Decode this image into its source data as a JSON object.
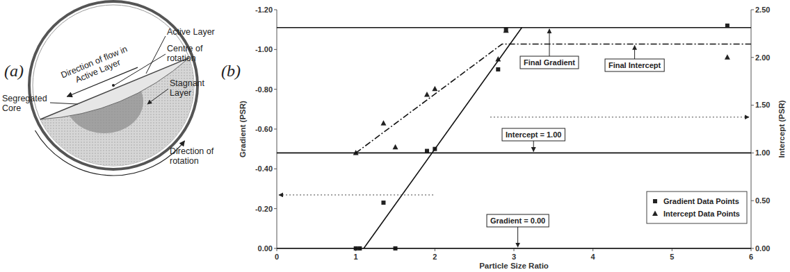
{
  "diagram": {
    "panel_label": "(a)",
    "active_layer": "Active Layer",
    "flow": "Direction of flow in Active Layer",
    "centre": "Centre of rotation",
    "stagnant": "Stagnant Layer",
    "core": "Segregated Core",
    "rotation": "Direction of rotation"
  },
  "chart_data": {
    "type": "scatter",
    "panel_label": "(b)",
    "x_label": "Particle Size Ratio",
    "y_label": "Gradient (PSR)",
    "y2_label": "Intercept (PSR)",
    "xlim": [
      0,
      6
    ],
    "xticks": [
      0,
      1,
      2,
      3,
      4,
      5,
      6
    ],
    "ylim": [
      0,
      -1.2
    ],
    "yticks": [
      {
        "value": 0,
        "label": "0.00"
      },
      {
        "value": -0.2,
        "label": "-0.20"
      },
      {
        "value": -0.4,
        "label": "-0.40"
      },
      {
        "value": -0.6,
        "label": "-0.60"
      },
      {
        "value": -0.8,
        "label": "-0.80"
      },
      {
        "value": -1.0,
        "label": "-1.00"
      },
      {
        "value": -1.2,
        "label": "-1.20"
      }
    ],
    "y2lim": [
      0,
      2.5
    ],
    "y2ticks": [
      {
        "value": 0,
        "label": "0.00"
      },
      {
        "value": 0.5,
        "label": "0.50"
      },
      {
        "value": 1.0,
        "label": "1.00"
      },
      {
        "value": 1.5,
        "label": "1.50"
      },
      {
        "value": 2.0,
        "label": "2.00"
      },
      {
        "value": 2.5,
        "label": "2.50"
      }
    ],
    "grid": false,
    "legend": "lower right",
    "annotations": [
      "Final Gradient",
      "Final Intercept",
      "Intercept = 1.00",
      "Gradient = 0.00"
    ],
    "series": [
      {
        "name": "Gradient Data Points",
        "type": "scatter",
        "marker": "square",
        "color": "#222222",
        "x": [
          1.0,
          1.05,
          1.35,
          1.5,
          1.9,
          2.0,
          2.8,
          2.9,
          5.7
        ],
        "values": [
          0,
          0,
          -0.23,
          0,
          -0.49,
          -0.5,
          -0.9,
          -1.1,
          -1.12
        ]
      },
      {
        "name": "Intercept Data Points",
        "type": "scatter",
        "marker": "triangle",
        "color": "#222222",
        "axis": "y2",
        "x": [
          1.0,
          1.35,
          1.5,
          1.9,
          2.0,
          2.8,
          2.9,
          5.7
        ],
        "values": [
          1.0,
          1.31,
          1.06,
          1.61,
          1.67,
          1.98,
          2.28,
          2.0
        ]
      },
      {
        "type": "line",
        "line_style": "solid",
        "color": "#111111",
        "x": [
          1.1,
          3.1
        ],
        "values": [
          0,
          -1.11
        ]
      },
      {
        "type": "line",
        "line_style": "solid",
        "color": "#111111",
        "x": [
          0,
          6
        ],
        "values": [
          -1.11,
          -1.11
        ]
      },
      {
        "type": "line",
        "line_style": "solid",
        "color": "#111111",
        "x": [
          0,
          6
        ],
        "values": [
          0,
          0
        ]
      },
      {
        "type": "line",
        "line_style": "solid",
        "color": "#111111",
        "axis": "y2",
        "x": [
          0,
          6
        ],
        "values": [
          1.0,
          1.0
        ]
      },
      {
        "type": "line",
        "line_style": "dashdot",
        "color": "#111111",
        "axis": "y2",
        "x": [
          1.0,
          2.85,
          6
        ],
        "values": [
          1.0,
          2.14,
          2.14
        ]
      }
    ]
  }
}
